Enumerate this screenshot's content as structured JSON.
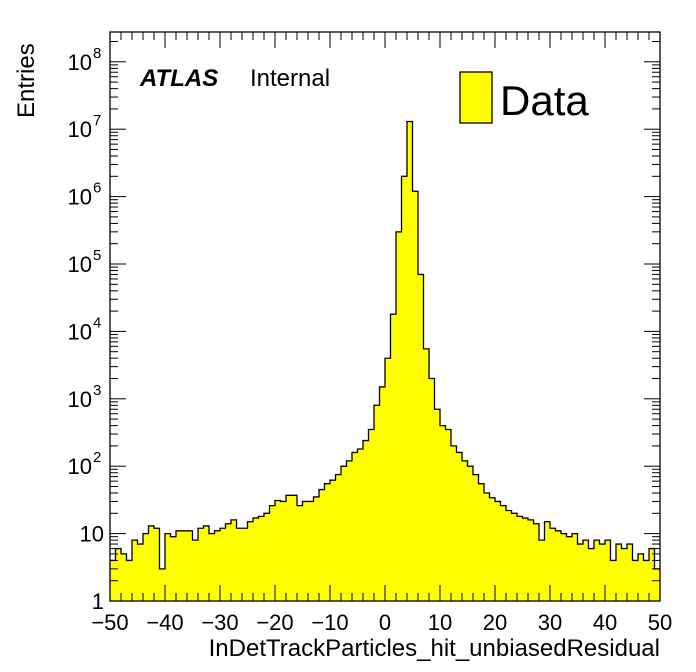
{
  "chart_data": {
    "type": "bar",
    "subtype": "histogram",
    "xlabel": "InDetTrackParticles_hit_unbiasedResidual",
    "ylabel": "Entries",
    "xlim": [
      -50,
      50
    ],
    "ylim": [
      1,
      200000000
    ],
    "yscale": "log",
    "bin_width": 1,
    "bin_low_edges_start": -50,
    "xticks": [
      -50,
      -40,
      -30,
      -20,
      -10,
      0,
      10,
      20,
      30,
      40,
      50
    ],
    "xtick_labels": [
      "−50",
      "−40",
      "−30",
      "−20",
      "−10",
      "0",
      "10",
      "20",
      "30",
      "40",
      "50"
    ],
    "yticks": [
      {
        "base": "1",
        "exp": "",
        "value": 1
      },
      {
        "base": "10",
        "exp": "",
        "value": 10
      },
      {
        "base": "10",
        "exp": "2",
        "value": 100
      },
      {
        "base": "10",
        "exp": "3",
        "value": 1000
      },
      {
        "base": "10",
        "exp": "4",
        "value": 10000
      },
      {
        "base": "10",
        "exp": "5",
        "value": 100000
      },
      {
        "base": "10",
        "exp": "6",
        "value": 1000000
      },
      {
        "base": "10",
        "exp": "7",
        "value": 10000000
      },
      {
        "base": "10",
        "exp": "8",
        "value": 100000000
      }
    ],
    "fill_color": "#ffff00",
    "line_color": "#000000",
    "grid": false,
    "legend_position": "top-right",
    "annotation_bold": "ATLAS",
    "annotation_text": "Internal",
    "series": [
      {
        "name": "Data",
        "values": [
          4,
          6,
          5,
          4,
          8,
          7,
          10,
          13,
          12,
          3,
          10,
          9,
          11,
          11,
          11,
          8,
          12,
          13,
          10,
          11,
          12,
          14,
          16,
          12,
          12,
          15,
          17,
          18,
          20,
          26,
          31,
          30,
          37,
          37,
          26,
          30,
          30,
          35,
          45,
          55,
          62,
          75,
          100,
          120,
          160,
          180,
          240,
          350,
          800,
          1500,
          4000,
          18000,
          300000,
          2000000,
          13000000,
          1200000,
          70000,
          5500,
          2000,
          700,
          400,
          350,
          200,
          160,
          120,
          100,
          75,
          55,
          40,
          34,
          30,
          26,
          22,
          20,
          18,
          17,
          16,
          14,
          8,
          15,
          12,
          11,
          10,
          9,
          10,
          7,
          8,
          6,
          8,
          7,
          8,
          4,
          7,
          6,
          7,
          4,
          5,
          4,
          6,
          3
        ]
      }
    ]
  }
}
